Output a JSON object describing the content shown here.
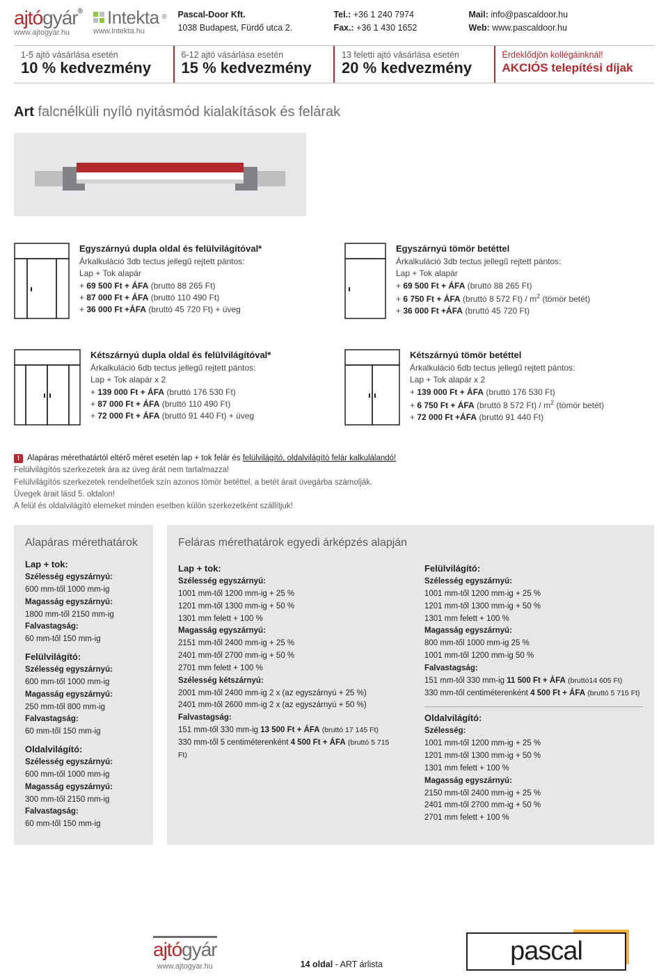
{
  "header": {
    "logo1_part1": "ajtó",
    "logo1_part2": "gyár",
    "logo1_url": "www.ajtogyar.hu",
    "logo2_text": "Intekta",
    "logo2_url": "www.intekta.hu",
    "company": "Pascal-Door Kft.",
    "address": "1038 Budapest, Fürdő utca 2.",
    "tel_lbl": "Tel.:",
    "tel": "+36 1 240 7974",
    "fax_lbl": "Fax.:",
    "fax": "+36 1 430 1652",
    "mail_lbl": "Mail:",
    "mail": "info@pascaldoor.hu",
    "web_lbl": "Web:",
    "web": "www.pascaldoor.hu"
  },
  "discounts": [
    {
      "t": "1-5 ajtó vásárlása esetén",
      "b": "10 % kedvezmény"
    },
    {
      "t": "6-12 ajtó vásárlása esetén",
      "b": "15 % kedvezmény"
    },
    {
      "t": "13 feletti ajtó vásárlása esetén",
      "b": "20 % kedvezmény"
    },
    {
      "t": "Érdeklődjön kollégáinknál!",
      "b": "AKCIÓS telepítési díjak"
    }
  ],
  "title_art": "Art",
  "title_rest": " falcnélküli nyíló nyitásmód kialakítások és felárak",
  "hero_colors": {
    "panel": "#b2292e",
    "frame_light": "#ffffff",
    "frame_dark": "#a7a9ac",
    "bg": "#e6e7e8"
  },
  "products": [
    {
      "title": "Egyszárnyú dupla oldal és felülvilágítóval*",
      "sub": "Árkalkuláció 3db tectus jellegű rejtett pántos:",
      "lines": [
        "Lap + Tok alapár",
        "+ <b>69 500 Ft + ÁFA</b> (bruttó 88 265 Ft)",
        "+ <b>87 000 Ft + ÁFA</b> (bruttó 110 490 Ft)",
        "+ <b>36 000 Ft +ÁFA</b> (bruttó 45 720 Ft) + üveg"
      ],
      "icon": "single-side-top"
    },
    {
      "title": "Egyszárnyú tömör betéttel",
      "sub": "Árkalkuláció 3db tectus jellegű rejtett pántos:",
      "lines": [
        "Lap + Tok alapár",
        "+ <b>69 500 Ft + ÁFA</b> (bruttó 88 265 Ft)",
        "+ <b>6 750 Ft + ÁFA</b> (bruttó 8 572 Ft) / m<sup class='m2'>2</sup> (tömör betét)",
        "+ <b>36 000 Ft +ÁFA</b> (bruttó 45 720 Ft)"
      ],
      "icon": "single-solid"
    },
    {
      "title": "Kétszárnyú dupla oldal és felülvilágítóval*",
      "sub": "Árkalkuláció 6db tectus jellegű rejtett pántos:",
      "lines": [
        "Lap + Tok alapár x 2",
        "+ <b>139 000 Ft + ÁFA</b> (bruttó 176 530 Ft)",
        "+ <b>87 000 Ft + ÁFA</b> (bruttó 110 490 Ft)",
        "+ <b>72 000 Ft + ÁFA</b> (bruttó 91 440 Ft) + üveg"
      ],
      "icon": "double-side-top"
    },
    {
      "title": "Kétszárnyú tömör betéttel",
      "sub": "Árkalkuláció 6db tectus jellegű rejtett pántos:",
      "lines": [
        "Lap + Tok alapár x 2",
        "+ <b>139 000 Ft + ÁFA</b> (bruttó 176 530 Ft)",
        "+  <b>6 750 Ft + ÁFA</b> (bruttó 8 572 Ft) / m<sup class='m2'>2</sup> (tömör betét)",
        "+ <b>72 000 Ft +ÁFA</b> (bruttó 91 440 Ft)"
      ],
      "icon": "double-solid"
    }
  ],
  "notice": [
    "Alapáras mérethatártól eltérő méret esetén lap + tok felár és <u>felülvilágító, oldalvilágító felár kalkulálandó!</u>",
    "Felülvilágítós szerkezetek ára az üveg árát nem tartalmazza!",
    "Felülvilágítós szerkezetek rendelhetőek szín azonos tömör betéttel, a betét árait üvegárba számolják.",
    "Üvegek árait lásd 5. oldalon!",
    "A felül és oldalvilágító elemeket minden esetben külön szerkezetként szállítjuk!"
  ],
  "limits_base": {
    "title": "Alapáras mérethatárok",
    "groups": [
      {
        "h": "Lap + tok:",
        "rows": [
          [
            "Szélesség egyszárnyú:",
            "600 mm-től 1000 mm-ig"
          ],
          [
            "Magasság egyszárnyú:",
            "1800 mm-től 2150 mm-ig"
          ],
          [
            "Falvastagság:",
            "60 mm-től 150 mm-ig"
          ]
        ]
      },
      {
        "h": "Felülvilágító:",
        "rows": [
          [
            "Szélesség egyszárnyú:",
            "600 mm-től 1000 mm-ig"
          ],
          [
            "Magasság egyszárnyú:",
            "250 mm-től 800 mm-ig"
          ],
          [
            "Falvastagság:",
            "60 mm-től 150 mm-ig"
          ]
        ]
      },
      {
        "h": "Oldalvilágító:",
        "rows": [
          [
            "Szélesség egyszárnyú:",
            "600 mm-től 1000 mm-ig"
          ],
          [
            "Magasság egyszárnyú:",
            "300 mm-től 2150 mm-ig"
          ],
          [
            "Falvastagság:",
            "60 mm-től 150 mm-ig"
          ]
        ]
      }
    ]
  },
  "limits_ext": {
    "title": "Feláras mérethatárok egyedi árképzés alapján",
    "left": {
      "h": "Lap + tok:",
      "blocks": [
        [
          "Szélesség egyszárnyú:",
          "1001 mm-től 1200 mm-ig + 25 %",
          "1201 mm-től 1300 mm-ig + 50 %",
          "1301 mm felett + 100 %"
        ],
        [
          "Magasság egyszárnyú:",
          "2151 mm-től 2400 mm-ig + 25 %",
          "2401 mm-től 2700 mm-ig + 50 %",
          "2701 mm felett + 100 %"
        ],
        [
          "Szélesség kétszárnyú:",
          "2001 mm-től 2400 mm-ig 2 x (az egyszárnyú + 25 %)",
          "2401 mm-től 2600 mm-ig 2 x (az egyszárnyú + 50 %)"
        ],
        [
          "Falvastagság:",
          "151 mm-től 330 mm-ig <b>13 500 Ft + ÁFA</b> <span class='sm'>(bruttó 17 145 Ft)</span>",
          "330 mm-től 5 centiméterenként <b>4 500 Ft + ÁFA</b> <span class='sm'>(bruttó 5 715 Ft)</span>"
        ]
      ]
    },
    "right": [
      {
        "h": "Felülvilágító:",
        "blocks": [
          [
            "Szélesség egyszárnyú:",
            "1001 mm-től 1200 mm-ig + 25 %",
            "1201 mm-től 1300 mm-ig + 50 %",
            "1301 mm felett + 100 %"
          ],
          [
            "Magasság egyszárnyú:",
            "800 mm-től 1000 mm-ig 25 %",
            "1001 mm-től 1200 mm-ig 50 %"
          ],
          [
            "Falvastagság:",
            "151 mm-től 330 mm-ig <b>11 500 Ft + ÁFA</b> <span class='sm'>(bruttó14 605 Ft)</span>",
            "330 mm-től centiméterenként <b>4 500 Ft + ÁFA</b> <span class='sm'>(bruttó 5 715 Ft)</span>"
          ]
        ]
      },
      {
        "h": "Oldalvilágító:",
        "blocks": [
          [
            "Szélesség:",
            "1001 mm-től 1200 mm-ig + 25 %",
            "1201 mm-től 1300 mm-ig + 50 %",
            "1301 mm felett + 100 %"
          ],
          [
            "Magasság egyszárnyú:",
            "2150 mm-től 2400 mm-ig + 25 %",
            "2401 mm-től 2700 mm-ig + 50 %",
            "2701 mm felett + 100 %"
          ]
        ]
      }
    ]
  },
  "footer": {
    "url": "www.ajtogyar.hu",
    "page": "14 oldal",
    "page_suffix": " - ART árlista",
    "pascal": "pascal"
  }
}
